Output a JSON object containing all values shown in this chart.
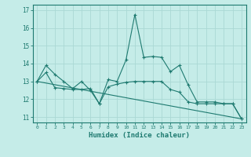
{
  "title": "",
  "xlabel": "Humidex (Indice chaleur)",
  "bg_color": "#c5ece8",
  "grid_color": "#aad8d4",
  "line_color": "#1e7a70",
  "xlim": [
    -0.5,
    23.5
  ],
  "ylim": [
    10.7,
    17.3
  ],
  "yticks": [
    11,
    12,
    13,
    14,
    15,
    16,
    17
  ],
  "xticks": [
    0,
    1,
    2,
    3,
    4,
    5,
    6,
    7,
    8,
    9,
    10,
    11,
    12,
    13,
    14,
    15,
    16,
    17,
    18,
    19,
    20,
    21,
    22,
    23
  ],
  "series1_x": [
    0,
    1,
    2,
    3,
    4,
    5,
    6,
    7,
    8,
    9,
    10,
    11,
    12,
    13,
    14,
    15,
    16,
    17,
    18,
    19,
    20,
    21,
    22,
    23
  ],
  "series1_y": [
    13.0,
    13.9,
    13.4,
    13.0,
    12.6,
    13.0,
    12.5,
    11.75,
    13.1,
    13.0,
    14.2,
    16.75,
    14.35,
    14.4,
    14.35,
    13.55,
    13.9,
    12.8,
    11.85,
    11.85,
    11.85,
    11.75,
    11.75,
    10.9
  ],
  "series2_x": [
    0,
    1,
    2,
    3,
    4,
    5,
    6,
    7,
    8,
    9,
    10,
    11,
    12,
    13,
    14,
    15,
    16,
    17,
    18,
    19,
    20,
    21,
    22,
    23
  ],
  "series2_y": [
    13.0,
    13.5,
    12.65,
    12.6,
    12.55,
    12.55,
    12.6,
    11.75,
    12.7,
    12.85,
    12.95,
    13.0,
    13.0,
    13.0,
    13.0,
    12.55,
    12.4,
    11.85,
    11.75,
    11.75,
    11.75,
    11.75,
    11.75,
    10.9
  ],
  "series3_x": [
    0,
    23
  ],
  "series3_y": [
    13.0,
    10.9
  ]
}
